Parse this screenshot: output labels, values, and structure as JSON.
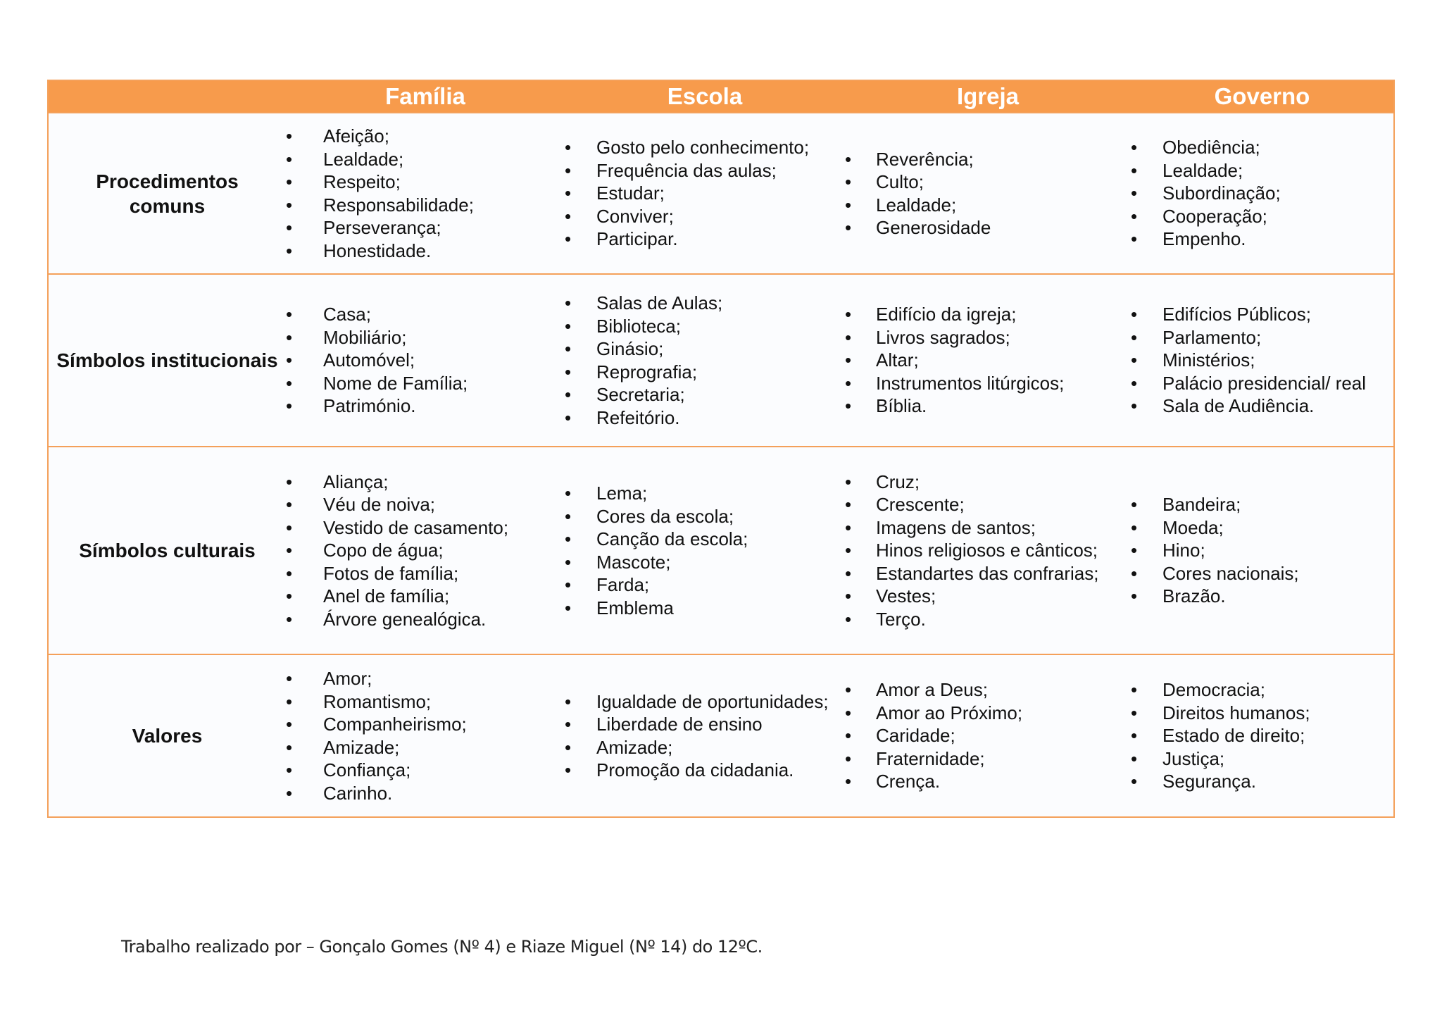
{
  "columns": [
    "",
    "Família",
    "Escola",
    "Igreja",
    "Governo"
  ],
  "rows": [
    {
      "label": "Procedimentos comuns",
      "cells": [
        [
          "Afeição;",
          " Lealdade;",
          " Respeito;",
          " Responsabilidade;",
          "Perseverança;",
          "Honestidade."
        ],
        [
          "Gosto pelo conhecimento;",
          " Frequência das aulas;",
          " Estudar;",
          "Conviver;",
          "Participar."
        ],
        [
          "Reverência;",
          "Culto;",
          "Lealdade;",
          "Generosidade"
        ],
        [
          "Obediência;",
          "Lealdade;",
          "Subordinação;",
          "Cooperação;",
          "Empenho."
        ]
      ]
    },
    {
      "label": "Símbolos institucionais",
      "cells": [
        [
          "Casa;",
          "Mobiliário;",
          "Automóvel;",
          "Nome de Família;",
          "Património."
        ],
        [
          "Salas de Aulas;",
          "Biblioteca;",
          "Ginásio;",
          "Reprografia;",
          "Secretaria;",
          "Refeitório."
        ],
        [
          "Edifício da igreja;",
          "Livros sagrados;",
          " Altar;",
          "Instrumentos litúrgicos;",
          "Bíblia."
        ],
        [
          "Edifícios Públicos;",
          "Parlamento;",
          "Ministérios;",
          "Palácio presidencial/ real",
          "Sala de Audiência."
        ]
      ]
    },
    {
      "label": "Símbolos culturais",
      "cells": [
        [
          "Aliança;",
          "Véu de noiva;",
          "Vestido de casamento;",
          " Copo de água;",
          " Fotos de família;",
          "Anel de família;",
          "Árvore genealógica."
        ],
        [
          "Lema;",
          "Cores da escola;",
          "Canção da escola;",
          "Mascote;",
          "Farda;",
          "Emblema"
        ],
        [
          "Cruz;",
          "Crescente;",
          "Imagens de santos;",
          "Hinos religiosos e cânticos;",
          "Estandartes das confrarias;",
          " Vestes;",
          "Terço."
        ],
        [
          "Bandeira;",
          "Moeda;",
          "Hino;",
          "Cores nacionais;",
          "Brazão."
        ]
      ]
    },
    {
      "label": "Valores",
      "cells": [
        [
          "Amor;",
          "Romantismo;",
          "Companheirismo;",
          "Amizade;",
          "Confiança;",
          "Carinho."
        ],
        [
          "Igualdade de oportunidades;",
          "Liberdade de ensino",
          "Amizade;",
          "Promoção da cidadania."
        ],
        [
          "Amor a Deus;",
          " Amor ao Próximo;",
          "Caridade;",
          " Fraternidade;",
          "Crença."
        ],
        [
          "Democracia;",
          " Direitos humanos;",
          " Estado de direito;",
          "Justiça;",
          "Segurança."
        ]
      ]
    }
  ],
  "footer": "Trabalho realizado por – Gonçalo Gomes (Nº 4)  e Riaze Miguel (Nº 14)  do 12ºC."
}
